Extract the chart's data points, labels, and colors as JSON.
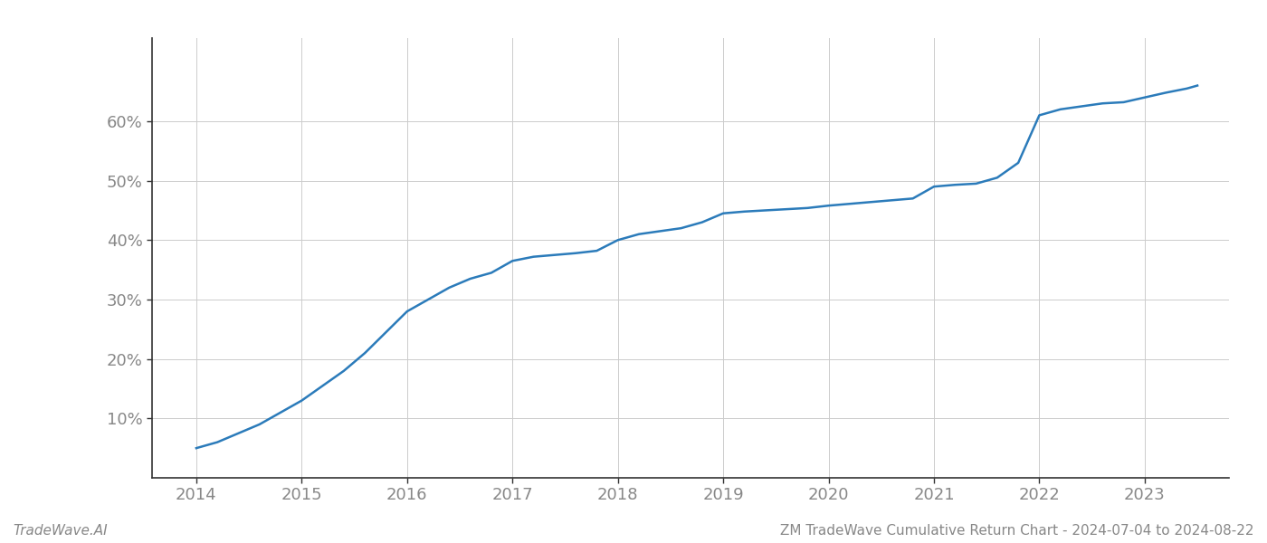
{
  "title": "",
  "xlabel": "",
  "ylabel": "",
  "footer_left": "TradeWave.AI",
  "footer_right": "ZM TradeWave Cumulative Return Chart - 2024-07-04 to 2024-08-22",
  "line_color": "#2b7bba",
  "line_width": 1.8,
  "background_color": "#ffffff",
  "grid_color": "#cccccc",
  "x_values": [
    2014.0,
    2014.2,
    2014.4,
    2014.6,
    2014.8,
    2015.0,
    2015.2,
    2015.4,
    2015.6,
    2015.8,
    2016.0,
    2016.2,
    2016.4,
    2016.6,
    2016.8,
    2017.0,
    2017.2,
    2017.4,
    2017.6,
    2017.8,
    2018.0,
    2018.2,
    2018.4,
    2018.6,
    2018.8,
    2019.0,
    2019.2,
    2019.4,
    2019.6,
    2019.8,
    2020.0,
    2020.2,
    2020.4,
    2020.6,
    2020.8,
    2021.0,
    2021.2,
    2021.4,
    2021.6,
    2021.8,
    2022.0,
    2022.2,
    2022.4,
    2022.6,
    2022.8,
    2023.0,
    2023.2,
    2023.4,
    2023.5
  ],
  "y_values": [
    5.0,
    6.0,
    7.5,
    9.0,
    11.0,
    13.0,
    15.5,
    18.0,
    21.0,
    24.5,
    28.0,
    30.0,
    32.0,
    33.5,
    34.5,
    36.5,
    37.2,
    37.5,
    37.8,
    38.2,
    40.0,
    41.0,
    41.5,
    42.0,
    43.0,
    44.5,
    44.8,
    45.0,
    45.2,
    45.4,
    45.8,
    46.1,
    46.4,
    46.7,
    47.0,
    49.0,
    49.3,
    49.5,
    50.5,
    53.0,
    61.0,
    62.0,
    62.5,
    63.0,
    63.2,
    64.0,
    64.8,
    65.5,
    66.0
  ],
  "yticks": [
    10,
    20,
    30,
    40,
    50,
    60
  ],
  "xticks": [
    2014,
    2015,
    2016,
    2017,
    2018,
    2019,
    2020,
    2021,
    2022,
    2023
  ],
  "xlim": [
    2013.58,
    2023.8
  ],
  "ylim": [
    0,
    74
  ],
  "spine_color": "#333333",
  "tick_color": "#888888",
  "tick_fontsize": 13,
  "footer_fontsize": 11
}
